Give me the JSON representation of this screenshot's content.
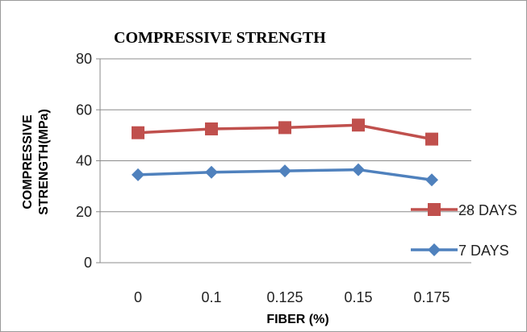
{
  "chart_data": {
    "type": "line",
    "title": "COMPRESSIVE STRENGTH",
    "xlabel": "FIBER (%)",
    "ylabel_line1": "COMPRESSIVE",
    "ylabel_line2": "STRENGTH(MPa)",
    "categories": [
      "0",
      "0.1",
      "0.125",
      "0.15",
      "0.175"
    ],
    "ylim": [
      0,
      80
    ],
    "yticks": [
      0,
      20,
      40,
      60,
      80
    ],
    "grid": true,
    "legend_placement": "right",
    "series": [
      {
        "name": "28 DAYS",
        "values": [
          51,
          52.5,
          53,
          54,
          48.5
        ],
        "color": "#c0504d",
        "marker": "square"
      },
      {
        "name": "7 DAYS",
        "values": [
          34.5,
          35.5,
          36,
          36.5,
          32.5
        ],
        "color": "#4f81bd",
        "marker": "diamond"
      }
    ]
  }
}
